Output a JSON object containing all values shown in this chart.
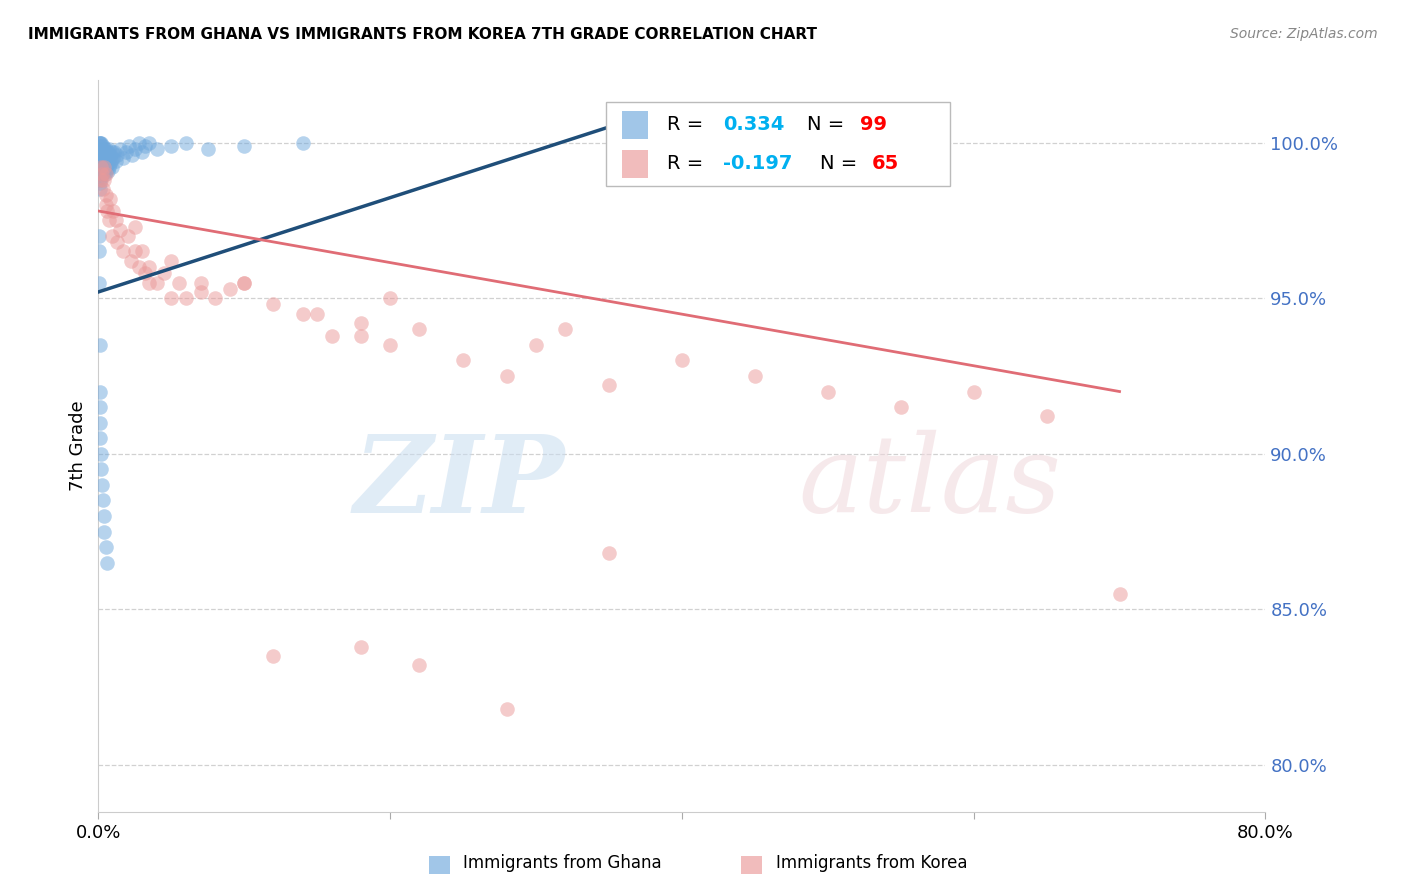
{
  "title": "IMMIGRANTS FROM GHANA VS IMMIGRANTS FROM KOREA 7TH GRADE CORRELATION CHART",
  "source": "Source: ZipAtlas.com",
  "ylabel": "7th Grade",
  "y_ticks": [
    80.0,
    85.0,
    90.0,
    95.0,
    100.0
  ],
  "x_lim": [
    0.0,
    80.0
  ],
  "y_lim": [
    78.5,
    102.0
  ],
  "ghana_color": "#6fa8dc",
  "korea_color": "#ea9999",
  "ghana_R": 0.334,
  "ghana_N": 99,
  "korea_R": -0.197,
  "korea_N": 65,
  "ghana_line_color": "#1f4e79",
  "korea_line_color": "#e06c75",
  "tick_color": "#4472c4",
  "background_color": "#ffffff",
  "ghana_points_x": [
    0.05,
    0.05,
    0.06,
    0.06,
    0.07,
    0.07,
    0.08,
    0.08,
    0.09,
    0.09,
    0.1,
    0.1,
    0.1,
    0.1,
    0.1,
    0.1,
    0.11,
    0.11,
    0.12,
    0.12,
    0.13,
    0.13,
    0.14,
    0.14,
    0.15,
    0.15,
    0.15,
    0.16,
    0.17,
    0.18,
    0.18,
    0.19,
    0.2,
    0.2,
    0.21,
    0.22,
    0.23,
    0.24,
    0.25,
    0.25,
    0.26,
    0.27,
    0.28,
    0.3,
    0.3,
    0.32,
    0.33,
    0.35,
    0.35,
    0.37,
    0.38,
    0.4,
    0.4,
    0.42,
    0.43,
    0.45,
    0.45,
    0.47,
    0.48,
    0.5,
    0.5,
    0.52,
    0.53,
    0.55,
    0.55,
    0.58,
    0.6,
    0.62,
    0.65,
    0.65,
    0.68,
    0.7,
    0.72,
    0.75,
    0.78,
    0.8,
    0.85,
    0.9,
    0.95,
    1.0,
    1.1,
    1.2,
    1.3,
    1.5,
    1.7,
    1.9,
    2.1,
    2.3,
    2.5,
    2.8,
    3.0,
    3.2,
    3.5,
    4.0,
    5.0,
    6.0,
    7.5,
    10.0,
    14.0
  ],
  "ghana_points_y": [
    99.8,
    99.5,
    100.0,
    99.7,
    99.8,
    99.9,
    99.6,
    100.0,
    99.5,
    99.8,
    99.0,
    98.5,
    99.2,
    99.7,
    100.0,
    98.8,
    99.4,
    99.8,
    99.3,
    99.6,
    98.7,
    99.5,
    99.1,
    99.7,
    99.4,
    99.8,
    100.0,
    99.3,
    99.6,
    99.2,
    99.7,
    98.9,
    99.5,
    99.8,
    99.2,
    99.6,
    99.1,
    99.7,
    99.4,
    99.8,
    99.0,
    99.5,
    99.3,
    99.6,
    99.9,
    99.4,
    99.7,
    99.2,
    99.5,
    99.8,
    99.1,
    99.4,
    99.7,
    99.3,
    99.6,
    99.0,
    99.4,
    99.7,
    99.2,
    99.5,
    99.8,
    99.1,
    99.4,
    99.7,
    99.2,
    99.5,
    99.3,
    99.6,
    99.1,
    99.4,
    99.7,
    99.2,
    99.5,
    99.8,
    99.3,
    99.6,
    99.4,
    99.7,
    99.2,
    99.5,
    99.7,
    99.4,
    99.6,
    99.8,
    99.5,
    99.7,
    99.9,
    99.6,
    99.8,
    100.0,
    99.7,
    99.9,
    100.0,
    99.8,
    99.9,
    100.0,
    99.8,
    99.9,
    100.0
  ],
  "ghana_points_y_low": [
    97.0,
    96.5,
    95.5,
    93.5,
    92.0,
    91.5,
    91.0,
    90.5,
    90.0,
    89.5,
    89.0,
    88.5,
    88.0,
    87.5,
    87.0,
    86.5
  ],
  "ghana_points_x_low": [
    0.05,
    0.06,
    0.07,
    0.08,
    0.09,
    0.1,
    0.12,
    0.14,
    0.16,
    0.2,
    0.25,
    0.3,
    0.35,
    0.4,
    0.5,
    0.6
  ],
  "korea_points_x": [
    0.15,
    0.2,
    0.25,
    0.3,
    0.35,
    0.4,
    0.5,
    0.5,
    0.55,
    0.6,
    0.7,
    0.8,
    0.9,
    1.0,
    1.2,
    1.3,
    1.5,
    1.7,
    2.0,
    2.2,
    2.5,
    2.8,
    3.0,
    3.2,
    3.5,
    4.0,
    4.5,
    5.0,
    5.5,
    6.0,
    7.0,
    8.0,
    9.0,
    10.0,
    12.0,
    14.0,
    16.0,
    18.0,
    20.0,
    22.0,
    2.5,
    3.5,
    5.0,
    7.0,
    10.0,
    15.0,
    18.0,
    20.0,
    25.0,
    28.0,
    30.0,
    32.0,
    35.0,
    40.0,
    45.0,
    50.0,
    55.0,
    60.0,
    65.0,
    70.0,
    12.0,
    18.0,
    22.0,
    28.0,
    35.0
  ],
  "korea_points_y": [
    99.2,
    98.8,
    99.0,
    98.5,
    98.8,
    99.2,
    98.0,
    99.0,
    98.3,
    97.8,
    97.5,
    98.2,
    97.0,
    97.8,
    97.5,
    96.8,
    97.2,
    96.5,
    97.0,
    96.2,
    97.3,
    96.0,
    96.5,
    95.8,
    96.0,
    95.5,
    95.8,
    96.2,
    95.5,
    95.0,
    95.5,
    95.0,
    95.3,
    95.5,
    94.8,
    94.5,
    93.8,
    94.2,
    93.5,
    94.0,
    96.5,
    95.5,
    95.0,
    95.2,
    95.5,
    94.5,
    93.8,
    95.0,
    93.0,
    92.5,
    93.5,
    94.0,
    92.2,
    93.0,
    92.5,
    92.0,
    91.5,
    92.0,
    91.2,
    85.5,
    83.5,
    83.8,
    83.2,
    81.8,
    86.8
  ]
}
